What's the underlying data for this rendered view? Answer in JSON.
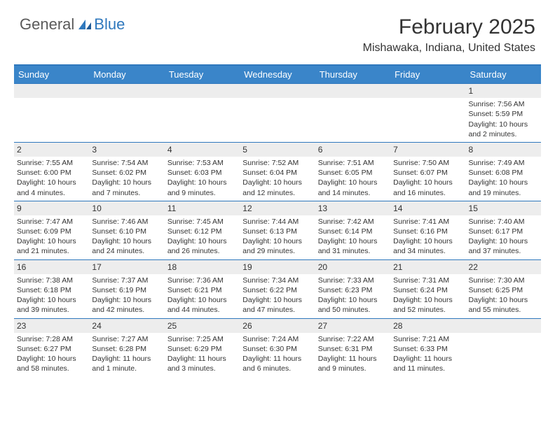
{
  "logo": {
    "general": "General",
    "blue": "Blue"
  },
  "title": "February 2025",
  "location": "Mishawaka, Indiana, United States",
  "colors": {
    "accent": "#2f78bd",
    "header_bg": "#3a85c9",
    "daynum_bg": "#ededed",
    "text": "#333333",
    "logo_gray": "#5a5a5a",
    "background": "#ffffff"
  },
  "day_names": [
    "Sunday",
    "Monday",
    "Tuesday",
    "Wednesday",
    "Thursday",
    "Friday",
    "Saturday"
  ],
  "weeks": [
    [
      {
        "n": "",
        "lines": []
      },
      {
        "n": "",
        "lines": []
      },
      {
        "n": "",
        "lines": []
      },
      {
        "n": "",
        "lines": []
      },
      {
        "n": "",
        "lines": []
      },
      {
        "n": "",
        "lines": []
      },
      {
        "n": "1",
        "lines": [
          "Sunrise: 7:56 AM",
          "Sunset: 5:59 PM",
          "Daylight: 10 hours and 2 minutes."
        ]
      }
    ],
    [
      {
        "n": "2",
        "lines": [
          "Sunrise: 7:55 AM",
          "Sunset: 6:00 PM",
          "Daylight: 10 hours and 4 minutes."
        ]
      },
      {
        "n": "3",
        "lines": [
          "Sunrise: 7:54 AM",
          "Sunset: 6:02 PM",
          "Daylight: 10 hours and 7 minutes."
        ]
      },
      {
        "n": "4",
        "lines": [
          "Sunrise: 7:53 AM",
          "Sunset: 6:03 PM",
          "Daylight: 10 hours and 9 minutes."
        ]
      },
      {
        "n": "5",
        "lines": [
          "Sunrise: 7:52 AM",
          "Sunset: 6:04 PM",
          "Daylight: 10 hours and 12 minutes."
        ]
      },
      {
        "n": "6",
        "lines": [
          "Sunrise: 7:51 AM",
          "Sunset: 6:05 PM",
          "Daylight: 10 hours and 14 minutes."
        ]
      },
      {
        "n": "7",
        "lines": [
          "Sunrise: 7:50 AM",
          "Sunset: 6:07 PM",
          "Daylight: 10 hours and 16 minutes."
        ]
      },
      {
        "n": "8",
        "lines": [
          "Sunrise: 7:49 AM",
          "Sunset: 6:08 PM",
          "Daylight: 10 hours and 19 minutes."
        ]
      }
    ],
    [
      {
        "n": "9",
        "lines": [
          "Sunrise: 7:47 AM",
          "Sunset: 6:09 PM",
          "Daylight: 10 hours and 21 minutes."
        ]
      },
      {
        "n": "10",
        "lines": [
          "Sunrise: 7:46 AM",
          "Sunset: 6:10 PM",
          "Daylight: 10 hours and 24 minutes."
        ]
      },
      {
        "n": "11",
        "lines": [
          "Sunrise: 7:45 AM",
          "Sunset: 6:12 PM",
          "Daylight: 10 hours and 26 minutes."
        ]
      },
      {
        "n": "12",
        "lines": [
          "Sunrise: 7:44 AM",
          "Sunset: 6:13 PM",
          "Daylight: 10 hours and 29 minutes."
        ]
      },
      {
        "n": "13",
        "lines": [
          "Sunrise: 7:42 AM",
          "Sunset: 6:14 PM",
          "Daylight: 10 hours and 31 minutes."
        ]
      },
      {
        "n": "14",
        "lines": [
          "Sunrise: 7:41 AM",
          "Sunset: 6:16 PM",
          "Daylight: 10 hours and 34 minutes."
        ]
      },
      {
        "n": "15",
        "lines": [
          "Sunrise: 7:40 AM",
          "Sunset: 6:17 PM",
          "Daylight: 10 hours and 37 minutes."
        ]
      }
    ],
    [
      {
        "n": "16",
        "lines": [
          "Sunrise: 7:38 AM",
          "Sunset: 6:18 PM",
          "Daylight: 10 hours and 39 minutes."
        ]
      },
      {
        "n": "17",
        "lines": [
          "Sunrise: 7:37 AM",
          "Sunset: 6:19 PM",
          "Daylight: 10 hours and 42 minutes."
        ]
      },
      {
        "n": "18",
        "lines": [
          "Sunrise: 7:36 AM",
          "Sunset: 6:21 PM",
          "Daylight: 10 hours and 44 minutes."
        ]
      },
      {
        "n": "19",
        "lines": [
          "Sunrise: 7:34 AM",
          "Sunset: 6:22 PM",
          "Daylight: 10 hours and 47 minutes."
        ]
      },
      {
        "n": "20",
        "lines": [
          "Sunrise: 7:33 AM",
          "Sunset: 6:23 PM",
          "Daylight: 10 hours and 50 minutes."
        ]
      },
      {
        "n": "21",
        "lines": [
          "Sunrise: 7:31 AM",
          "Sunset: 6:24 PM",
          "Daylight: 10 hours and 52 minutes."
        ]
      },
      {
        "n": "22",
        "lines": [
          "Sunrise: 7:30 AM",
          "Sunset: 6:25 PM",
          "Daylight: 10 hours and 55 minutes."
        ]
      }
    ],
    [
      {
        "n": "23",
        "lines": [
          "Sunrise: 7:28 AM",
          "Sunset: 6:27 PM",
          "Daylight: 10 hours and 58 minutes."
        ]
      },
      {
        "n": "24",
        "lines": [
          "Sunrise: 7:27 AM",
          "Sunset: 6:28 PM",
          "Daylight: 11 hours and 1 minute."
        ]
      },
      {
        "n": "25",
        "lines": [
          "Sunrise: 7:25 AM",
          "Sunset: 6:29 PM",
          "Daylight: 11 hours and 3 minutes."
        ]
      },
      {
        "n": "26",
        "lines": [
          "Sunrise: 7:24 AM",
          "Sunset: 6:30 PM",
          "Daylight: 11 hours and 6 minutes."
        ]
      },
      {
        "n": "27",
        "lines": [
          "Sunrise: 7:22 AM",
          "Sunset: 6:31 PM",
          "Daylight: 11 hours and 9 minutes."
        ]
      },
      {
        "n": "28",
        "lines": [
          "Sunrise: 7:21 AM",
          "Sunset: 6:33 PM",
          "Daylight: 11 hours and 11 minutes."
        ]
      },
      {
        "n": "",
        "lines": []
      }
    ]
  ]
}
